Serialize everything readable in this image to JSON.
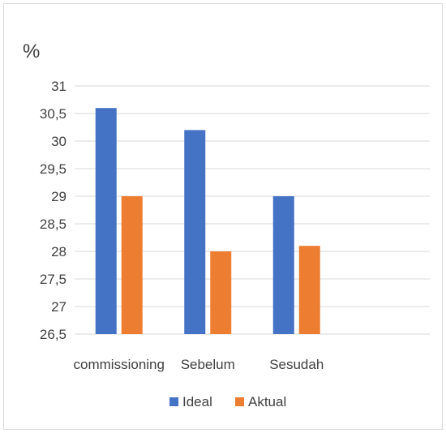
{
  "chart_data": {
    "type": "bar",
    "ylabel": "%",
    "categories": [
      "commissioning",
      "Sebelum",
      "Sesudah",
      ""
    ],
    "series": [
      {
        "name": "Ideal",
        "color": "#4472C4",
        "values": [
          30.6,
          30.2,
          29.0,
          null
        ]
      },
      {
        "name": "Aktual",
        "color": "#ED7D31",
        "values": [
          29.0,
          28.0,
          28.1,
          null
        ]
      }
    ],
    "ylim": [
      26.5,
      31
    ],
    "yticks": [
      "31",
      "30,5",
      "30",
      "29,5",
      "29",
      "28,5",
      "28",
      "27,5",
      "27",
      "26,5"
    ],
    "ytick_values": [
      31,
      30.5,
      30,
      29.5,
      29,
      28.5,
      28,
      27.5,
      27,
      26.5
    ],
    "grid": true,
    "legend": "bottom"
  }
}
